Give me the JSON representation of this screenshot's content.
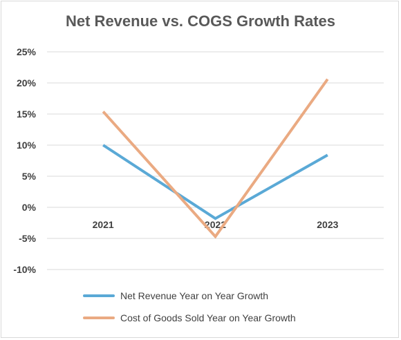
{
  "chart_data": {
    "type": "line",
    "title": "Net Revenue vs. COGS Growth Rates",
    "categories": [
      "2021",
      "2022",
      "2023"
    ],
    "y_ticks": [
      "25%",
      "20%",
      "15%",
      "10%",
      "5%",
      "0%",
      "-5%",
      "-10%"
    ],
    "ylim": [
      -10,
      25
    ],
    "grid": true,
    "legend_position": "bottom",
    "series": [
      {
        "name": "Net Revenue Year on Year Growth",
        "values": [
          10.0,
          -1.8,
          8.4
        ],
        "color": "#5aa9d6"
      },
      {
        "name": "Cost of Goods Sold Year on Year Growth",
        "values": [
          15.4,
          -4.7,
          20.6
        ],
        "color": "#eaaa82"
      }
    ]
  }
}
